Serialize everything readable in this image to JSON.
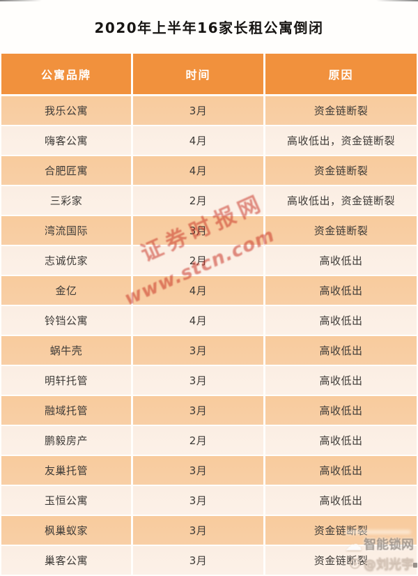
{
  "title": "2020年上半年16家长租公寓倒闭",
  "chart_data": {
    "type": "table",
    "title": "2020年上半年16家长租公寓倒闭",
    "columns": [
      "公寓品牌",
      "时间",
      "原因"
    ],
    "rows": [
      [
        "我乐公寓",
        "3月",
        "资金链断裂"
      ],
      [
        "嗨客公寓",
        "4月",
        "高收低出，资金链断裂"
      ],
      [
        "合肥匠寓",
        "4月",
        "资金链断裂"
      ],
      [
        "三彩家",
        "2月",
        "高收低出，资金链断裂"
      ],
      [
        "湾流国际",
        "3月",
        "资金链断裂"
      ],
      [
        "志诚优家",
        "2月",
        "高收低出"
      ],
      [
        "金亿",
        "4月",
        "高收低出"
      ],
      [
        "铃铛公寓",
        "4月",
        "高收低出"
      ],
      [
        "蜗牛壳",
        "3月",
        "高收低出"
      ],
      [
        "明轩托管",
        "3月",
        "高收低出"
      ],
      [
        "融域托管",
        "3月",
        "高收低出"
      ],
      [
        "鹏毅房产",
        "2月",
        "高收低出"
      ],
      [
        "友巢托管",
        "3月",
        "高收低出"
      ],
      [
        "玉恒公寓",
        "3月",
        "高收低出"
      ],
      [
        "枫巢蚁家",
        "3月",
        "资金链断裂"
      ],
      [
        "巢客公寓",
        "3月",
        "资金链断裂"
      ]
    ]
  },
  "watermarks": {
    "center_site_name": "证券时报网",
    "center_site_url": "www.stcn.com",
    "corner_site_name": "智能锁网",
    "corner_user": "@刘光宇",
    "cloud_glyph": "☁"
  },
  "colors": {
    "header_bg": "#F1913D",
    "row_dark": "#F8CB9D",
    "row_light": "#FBEEE3",
    "header_text": "#FFFFFF",
    "cell_text": "#3D3A37",
    "title_text": "#171513",
    "watermark_red": "#C62C1E"
  }
}
